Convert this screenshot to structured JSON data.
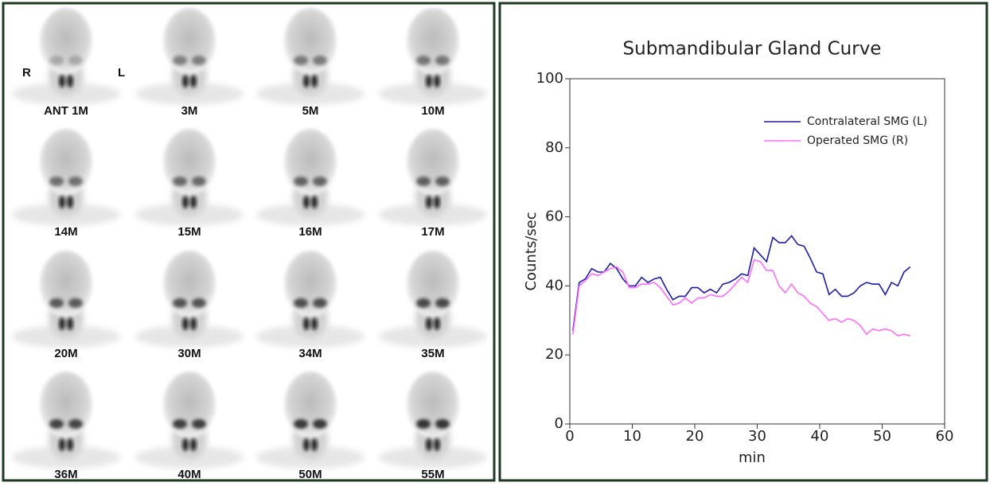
{
  "scan_panel": {
    "side_labels": [
      "R",
      "L"
    ],
    "labels": [
      "ANT 1M",
      "3M",
      "5M",
      "10M",
      "14M",
      "15M",
      "16M",
      "17M",
      "20M",
      "30M",
      "34M",
      "35M",
      "36M",
      "40M",
      "50M",
      "55M"
    ]
  },
  "chart_data": {
    "type": "line",
    "title": "Submandibular Gland Curve",
    "x_label": "min",
    "y_label": "Counts/sec",
    "xlim": [
      0,
      60
    ],
    "ylim": [
      0,
      100
    ],
    "xticks": [
      0,
      10,
      20,
      30,
      40,
      50,
      60
    ],
    "yticks": [
      0,
      20,
      40,
      60,
      80,
      100
    ],
    "legend": "upper right",
    "x": [
      0.5,
      1.5,
      2.5,
      3.5,
      4.5,
      5.5,
      6.5,
      7.5,
      8.5,
      9.5,
      10.5,
      11.5,
      12.5,
      13.5,
      14.5,
      15.5,
      16.5,
      17.5,
      18.5,
      19.5,
      20.5,
      21.5,
      22.5,
      23.5,
      24.5,
      25.5,
      26.5,
      27.5,
      28.5,
      29.5,
      30.5,
      31.5,
      32.5,
      33.5,
      34.5,
      35.5,
      36.5,
      37.5,
      38.5,
      39.5,
      40.5,
      41.5,
      42.5,
      43.5,
      44.5,
      45.5,
      46.5,
      47.5,
      48.5,
      49.5,
      50.5,
      51.5,
      52.5,
      53.5,
      54.5
    ],
    "series": [
      {
        "name": "Contralateral SMG (L)",
        "color": "#1c1ca6",
        "values": [
          27,
          41,
          42,
          45,
          44,
          44,
          46.5,
          45,
          42,
          40,
          40,
          42.5,
          41,
          42,
          42.5,
          39,
          36,
          37,
          37,
          39.5,
          39.5,
          38,
          39,
          38,
          40.5,
          41,
          42,
          43.5,
          43,
          51,
          49,
          47,
          54,
          52.5,
          52.5,
          54.5,
          52,
          51.5,
          48,
          44,
          43.5,
          37.5,
          39,
          37,
          37,
          38,
          40,
          41,
          40.5,
          40.5,
          37.5,
          41,
          40,
          44,
          45.5
        ]
      },
      {
        "name": "Operated SMG (R)",
        "color": "#ff6bff",
        "values": [
          26,
          40,
          41.5,
          43.5,
          43,
          44,
          45,
          45.5,
          44,
          39.5,
          39.5,
          40.5,
          40.5,
          41,
          39.5,
          37,
          34.5,
          35,
          36.5,
          35,
          36.5,
          36.5,
          37.5,
          37,
          37,
          38.5,
          40.5,
          42.5,
          41,
          47.5,
          47,
          44.5,
          44.5,
          40,
          38,
          40.5,
          38,
          37,
          35,
          34,
          32,
          30,
          30.5,
          29.5,
          30.5,
          30,
          28.5,
          26,
          27.5,
          27,
          27.5,
          27,
          25.5,
          26,
          25.5
        ]
      }
    ]
  }
}
